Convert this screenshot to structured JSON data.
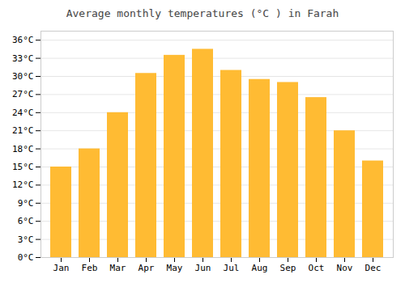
{
  "chart_data": {
    "type": "bar",
    "title": "Average monthly temperatures (°C ) in Farah",
    "categories": [
      "Jan",
      "Feb",
      "Mar",
      "Apr",
      "May",
      "Jun",
      "Jul",
      "Aug",
      "Sep",
      "Oct",
      "Nov",
      "Dec"
    ],
    "values": [
      15,
      18,
      24,
      30.5,
      33.5,
      34.5,
      31,
      29.5,
      29,
      26.5,
      21,
      16
    ],
    "color": "#FFBB33",
    "ylim": [
      0,
      37.5
    ],
    "yticks": [
      {
        "value": 0,
        "label": "0°C"
      },
      {
        "value": 3,
        "label": "3°C"
      },
      {
        "value": 6,
        "label": "6°C"
      },
      {
        "value": 9,
        "label": "9°C"
      },
      {
        "value": 12,
        "label": "12°C"
      },
      {
        "value": 15,
        "label": "15°C"
      },
      {
        "value": 18,
        "label": "18°C"
      },
      {
        "value": 21,
        "label": "21°C"
      },
      {
        "value": 24,
        "label": "24°C"
      },
      {
        "value": 27,
        "label": "27°C"
      },
      {
        "value": 30,
        "label": "30°C"
      },
      {
        "value": 33,
        "label": "33°C"
      },
      {
        "value": 36,
        "label": "36°C"
      }
    ],
    "grid": true
  }
}
